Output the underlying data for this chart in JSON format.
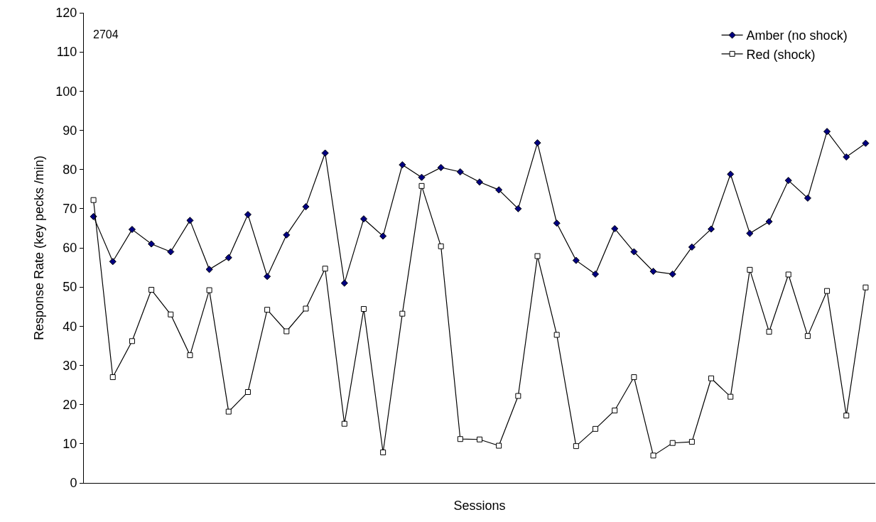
{
  "chart_data": {
    "type": "line",
    "xlabel": "Sessions",
    "ylabel": "Response Rate (key pecks /min)",
    "annotations": [
      "2704"
    ],
    "categories": [
      null,
      null,
      null,
      null,
      null,
      null,
      null,
      null,
      null,
      null,
      null,
      null,
      null,
      null,
      null,
      null,
      null,
      null,
      null,
      null,
      null,
      null,
      null,
      null,
      null,
      null,
      null,
      null,
      null,
      null,
      null,
      null,
      null,
      null,
      null,
      null,
      null,
      null,
      null,
      null,
      null
    ],
    "series": [
      {
        "name": "Amber (no shock)",
        "color": "#000080",
        "marker": "diamond",
        "values": [
          68,
          56.5,
          64.7,
          61,
          59,
          67,
          54.5,
          57.5,
          68.5,
          52.7,
          63.3,
          70.5,
          84.2,
          51,
          67.4,
          63,
          81.2,
          78,
          80.5,
          79.4,
          76.8,
          74.8,
          70,
          86.8,
          66.3,
          56.8,
          53.3,
          64.9,
          59,
          54,
          53.3,
          60.2,
          64.8,
          78.8,
          63.7,
          66.7,
          77.2,
          72.7,
          89.7,
          83.2,
          86.7
        ]
      },
      {
        "name": "Red (shock)",
        "color": "#ffffff",
        "marker": "square",
        "values": [
          72.2,
          27,
          36.2,
          49.3,
          43,
          32.6,
          49.2,
          18.2,
          23.2,
          44.2,
          38.7,
          44.5,
          54.7,
          15.1,
          44.4,
          7.8,
          43.2,
          75.8,
          60.4,
          11.2,
          11.1,
          9.5,
          22.2,
          57.9,
          37.8,
          9.4,
          13.8,
          18.5,
          27,
          7,
          10.2,
          10.5,
          26.7,
          22,
          54.4,
          38.6,
          53.2,
          37.5,
          49,
          17.2,
          49.9
        ]
      }
    ],
    "ylim": [
      0,
      120
    ],
    "yticks": [
      0,
      10,
      20,
      30,
      40,
      50,
      60,
      70,
      80,
      90,
      100,
      110,
      120
    ],
    "grid": false,
    "legend": "top right",
    "tick_labels": "y",
    "line_style": "solid"
  }
}
